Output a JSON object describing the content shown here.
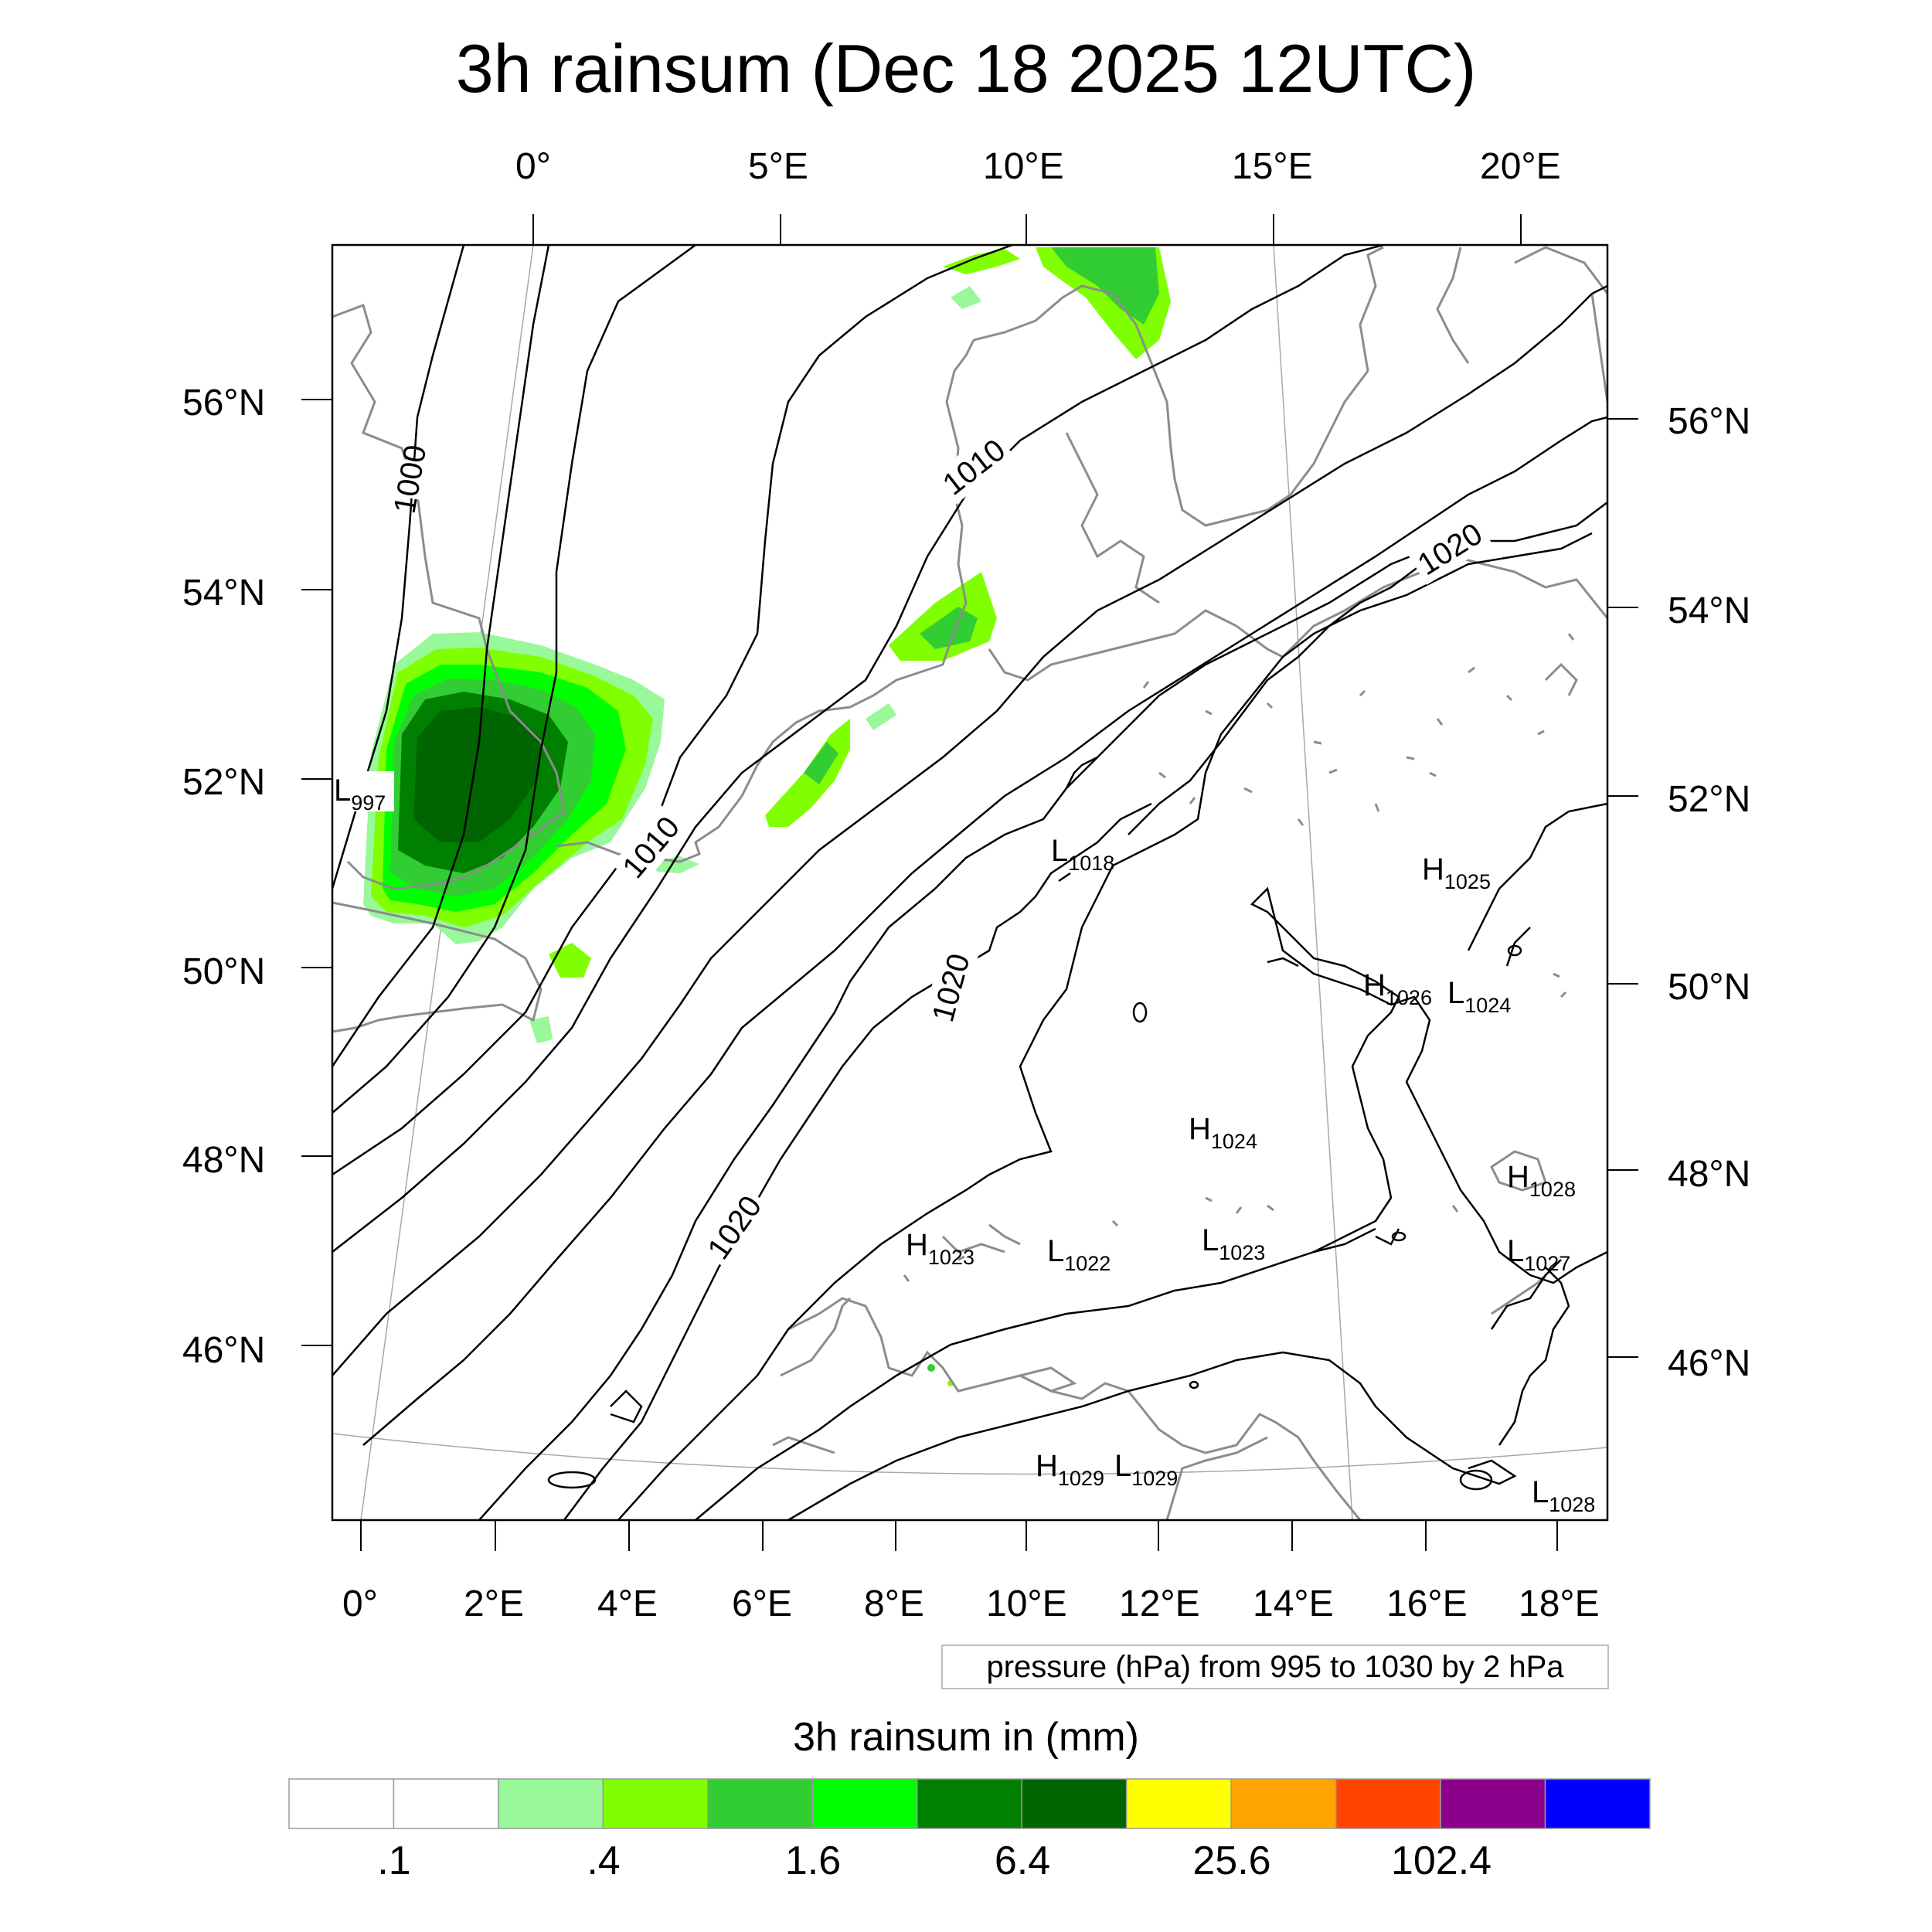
{
  "title": "3h rainsum (Dec 18 2025 12UTC)",
  "top_lon_labels": [
    "0°",
    "5°E",
    "10°E",
    "15°E",
    "20°E"
  ],
  "bottom_lon_labels": [
    "0°",
    "2°E",
    "4°E",
    "6°E",
    "8°E",
    "10°E",
    "12°E",
    "14°E",
    "16°E",
    "18°E"
  ],
  "left_lat_labels": [
    "56°N",
    "54°N",
    "52°N",
    "50°N",
    "48°N",
    "46°N"
  ],
  "right_lat_labels": [
    "56°N",
    "54°N",
    "52°N",
    "50°N",
    "48°N",
    "46°N"
  ],
  "contour_labels": [
    "1000",
    "1010",
    "1010",
    "1020",
    "1020",
    "1020"
  ],
  "pressure_centers": [
    {
      "type": "L",
      "value": "997"
    },
    {
      "type": "L",
      "value": "1018"
    },
    {
      "type": "H",
      "value": "1025"
    },
    {
      "type": "H",
      "value": "1026"
    },
    {
      "type": "L",
      "value": "1024"
    },
    {
      "type": "H",
      "value": "1024"
    },
    {
      "type": "H",
      "value": "1028"
    },
    {
      "type": "H",
      "value": "1023"
    },
    {
      "type": "L",
      "value": "1022"
    },
    {
      "type": "L",
      "value": "1023"
    },
    {
      "type": "L",
      "value": "1027"
    },
    {
      "type": "H",
      "value": "1029"
    },
    {
      "type": "L",
      "value": "1029"
    },
    {
      "type": "L",
      "value": "1028"
    }
  ],
  "pressure_note": "pressure (hPa) from 995 to 1030 by 2 hPa",
  "colorbar": {
    "title": "3h rainsum in (mm)",
    "labels": [
      ".1",
      ".4",
      "1.6",
      "6.4",
      "25.6",
      "102.4"
    ],
    "colors": [
      "#ffffff",
      "#ffffff",
      "#99f899",
      "#80ff00",
      "#32cd32",
      "#00ff00",
      "#008000",
      "#006400",
      "#ffff00",
      "#ffa500",
      "#ff4500",
      "#8b008b",
      "#0000ff"
    ]
  }
}
